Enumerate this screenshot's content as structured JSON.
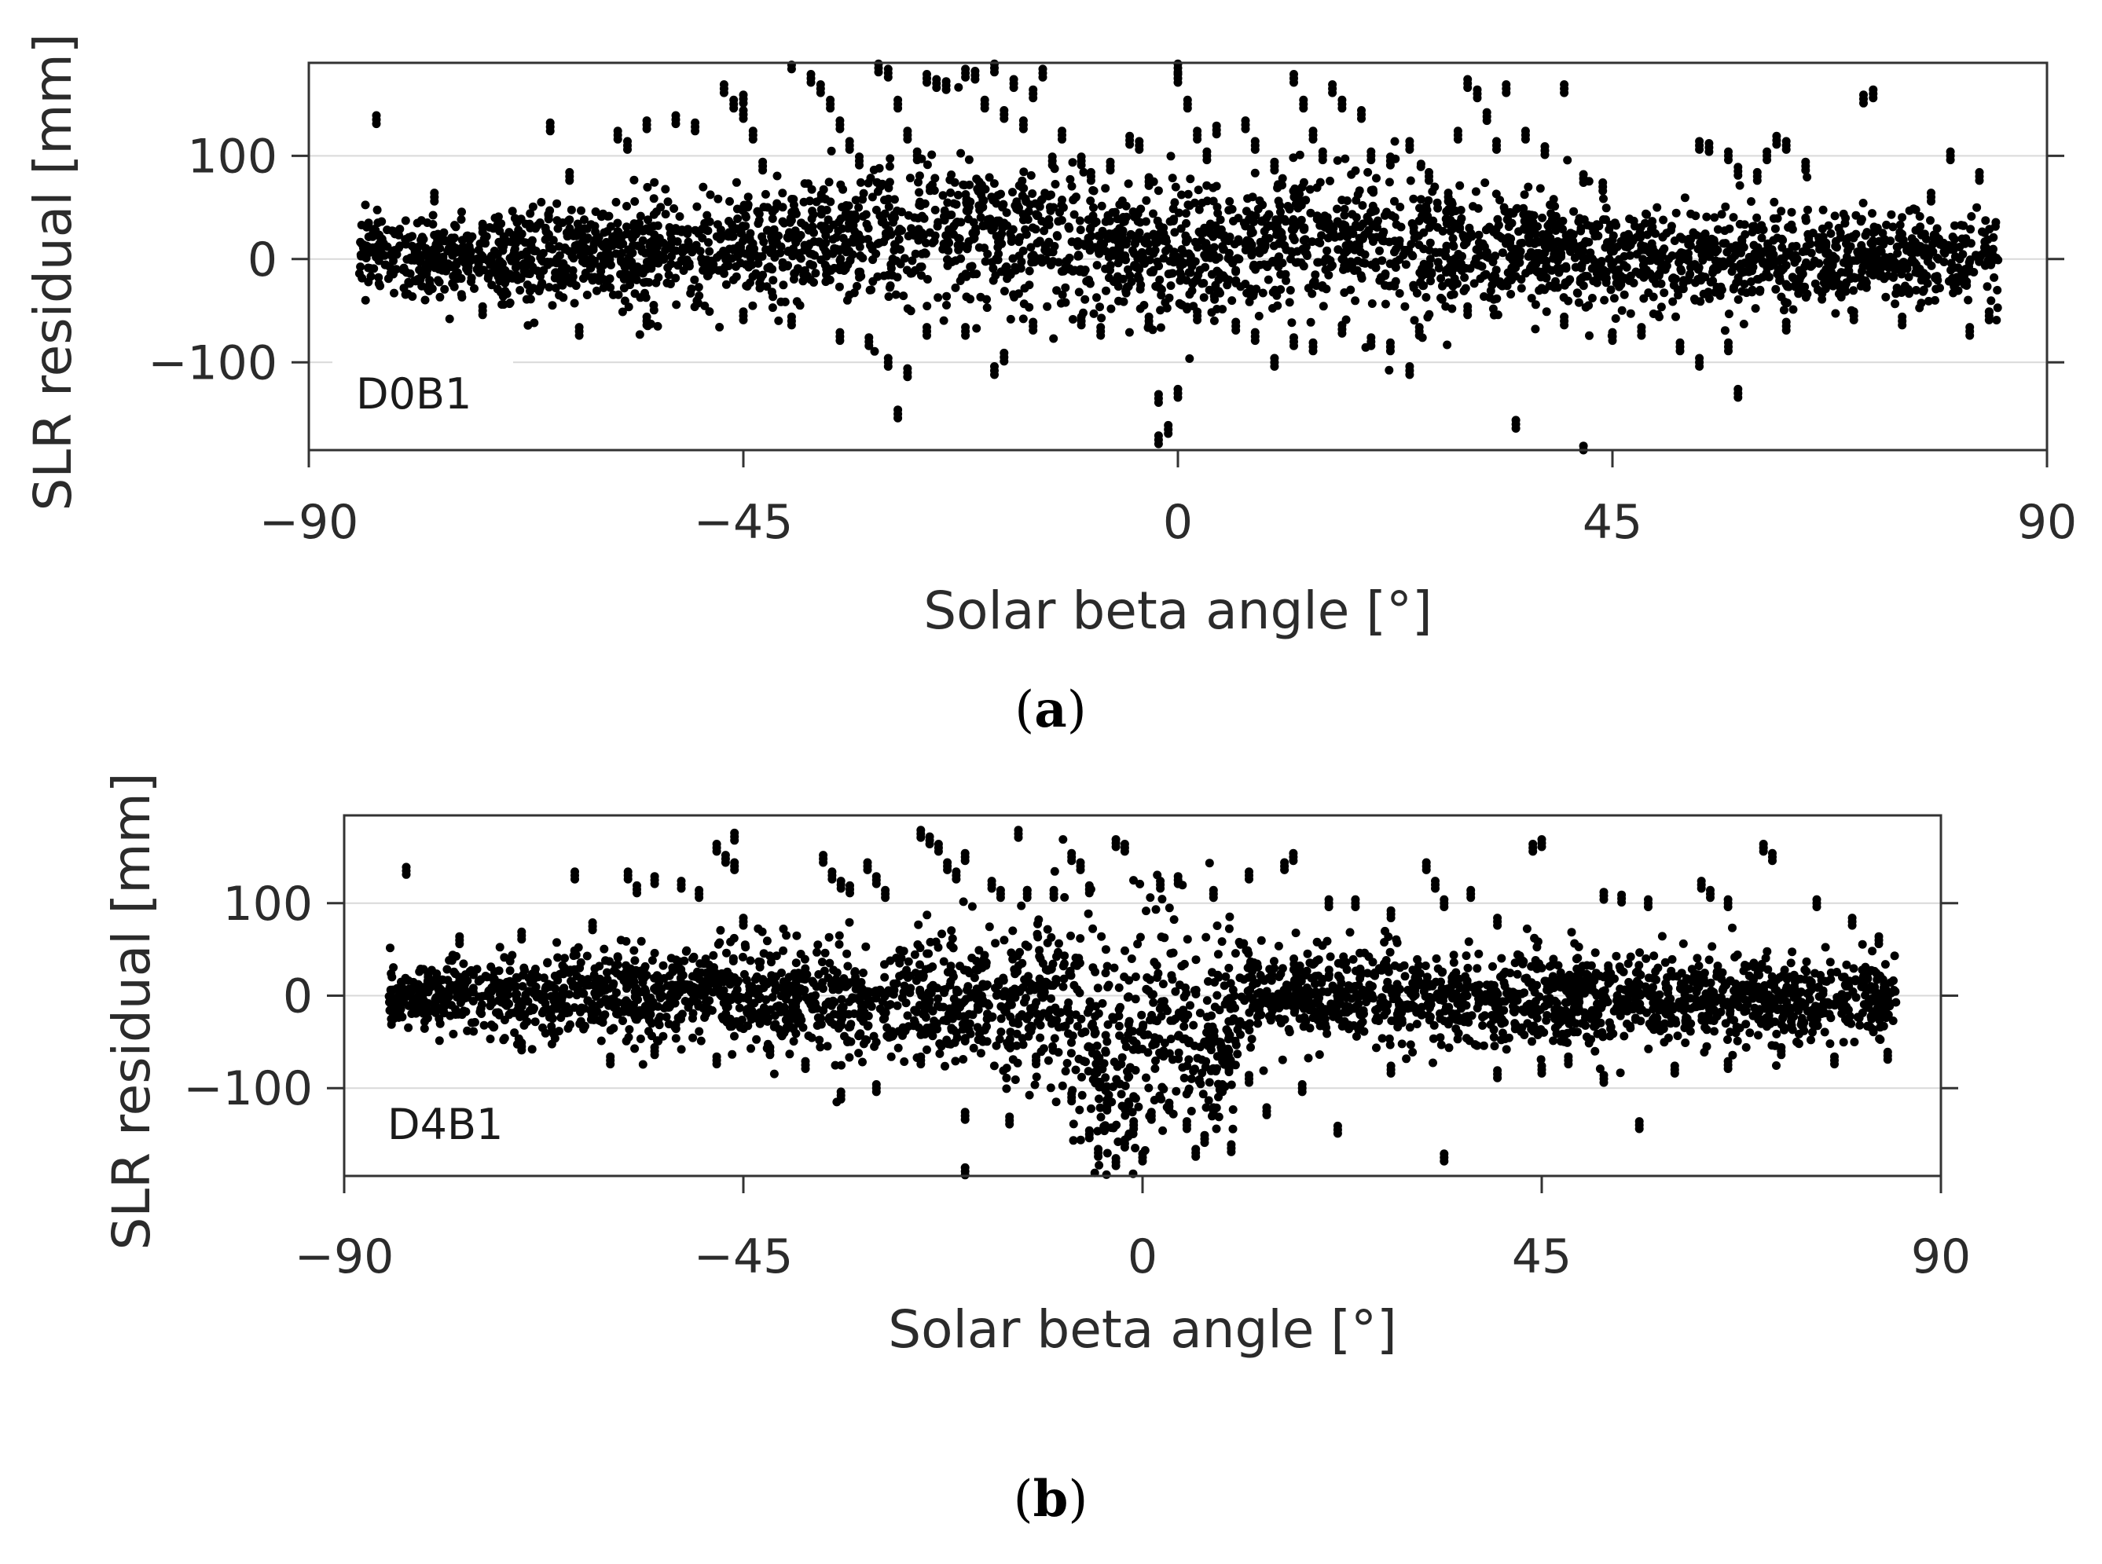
{
  "chart_data": [
    {
      "type": "scatter",
      "panel": "a",
      "caption_letter": "a",
      "annotation": "D0B1",
      "xlabel": "Solar beta angle [°]",
      "ylabel": "SLR residual [mm]",
      "xlim": [
        -90,
        90
      ],
      "ylim": [
        -185,
        190
      ],
      "xticks": [
        -90,
        -45,
        0,
        45,
        90
      ],
      "yticks": [
        -100,
        0,
        100
      ],
      "xtick_labels": [
        "−90",
        "−45",
        "0",
        "45",
        "90"
      ],
      "ytick_labels": [
        "−100",
        "0",
        "100"
      ],
      "grid": "horizontal",
      "marker_color": "#000000",
      "band": [
        [
          -85,
          5,
          20
        ],
        [
          -80,
          0,
          18
        ],
        [
          -75,
          0,
          20
        ],
        [
          -70,
          3,
          22
        ],
        [
          -65,
          5,
          24
        ],
        [
          -60,
          6,
          25
        ],
        [
          -55,
          8,
          26
        ],
        [
          -50,
          10,
          27
        ],
        [
          -45,
          12,
          28
        ],
        [
          -40,
          14,
          30
        ],
        [
          -35,
          18,
          32
        ],
        [
          -30,
          22,
          34
        ],
        [
          -25,
          25,
          36
        ],
        [
          -20,
          26,
          36
        ],
        [
          -15,
          22,
          35
        ],
        [
          -10,
          15,
          34
        ],
        [
          -5,
          10,
          33
        ],
        [
          0,
          8,
          32
        ],
        [
          5,
          10,
          32
        ],
        [
          10,
          14,
          33
        ],
        [
          15,
          18,
          34
        ],
        [
          20,
          20,
          34
        ],
        [
          25,
          18,
          33
        ],
        [
          30,
          14,
          30
        ],
        [
          35,
          8,
          28
        ],
        [
          40,
          3,
          26
        ],
        [
          45,
          0,
          25
        ],
        [
          50,
          0,
          24
        ],
        [
          55,
          0,
          24
        ],
        [
          60,
          0,
          24
        ],
        [
          65,
          0,
          23
        ],
        [
          70,
          0,
          22
        ],
        [
          75,
          0,
          22
        ],
        [
          80,
          0,
          21
        ],
        [
          85,
          0,
          20
        ]
      ],
      "outliers": [
        [
          -83,
          135
        ],
        [
          -77,
          60
        ],
        [
          -72,
          30
        ],
        [
          -65,
          128
        ],
        [
          -63,
          80
        ],
        [
          -58,
          120
        ],
        [
          -57,
          110
        ],
        [
          -55,
          130
        ],
        [
          -52,
          135
        ],
        [
          -50,
          128
        ],
        [
          -47,
          165
        ],
        [
          -46,
          150
        ],
        [
          -45,
          155
        ],
        [
          -45,
          140
        ],
        [
          -44,
          120
        ],
        [
          -43,
          90
        ],
        [
          -40,
          188
        ],
        [
          -38,
          175
        ],
        [
          -37,
          165
        ],
        [
          -36,
          150
        ],
        [
          -35,
          130
        ],
        [
          -34,
          110
        ],
        [
          -33,
          95
        ],
        [
          -31,
          185
        ],
        [
          -30,
          180
        ],
        [
          -29,
          150
        ],
        [
          -28,
          120
        ],
        [
          -27,
          100
        ],
        [
          -26,
          175
        ],
        [
          -25,
          170
        ],
        [
          -24,
          168
        ],
        [
          -22,
          180
        ],
        [
          -21,
          178
        ],
        [
          -20,
          150
        ],
        [
          -19,
          185
        ],
        [
          -18,
          140
        ],
        [
          -17,
          170
        ],
        [
          -16,
          130
        ],
        [
          -15,
          160
        ],
        [
          -14,
          180
        ],
        [
          -13,
          95
        ],
        [
          -12,
          120
        ],
        [
          -10,
          95
        ],
        [
          -9,
          80
        ],
        [
          -7,
          90
        ],
        [
          -5,
          115
        ],
        [
          -4,
          110
        ],
        [
          -3,
          75
        ],
        [
          0,
          185
        ],
        [
          0,
          175
        ],
        [
          1,
          150
        ],
        [
          2,
          120
        ],
        [
          3,
          100
        ],
        [
          4,
          125
        ],
        [
          7,
          130
        ],
        [
          8,
          110
        ],
        [
          10,
          90
        ],
        [
          12,
          175
        ],
        [
          13,
          150
        ],
        [
          14,
          120
        ],
        [
          15,
          100
        ],
        [
          16,
          165
        ],
        [
          17,
          150
        ],
        [
          19,
          140
        ],
        [
          20,
          100
        ],
        [
          22,
          95
        ],
        [
          24,
          110
        ],
        [
          26,
          80
        ],
        [
          28,
          60
        ],
        [
          29,
          120
        ],
        [
          30,
          170
        ],
        [
          31,
          160
        ],
        [
          32,
          138
        ],
        [
          33,
          110
        ],
        [
          34,
          165
        ],
        [
          36,
          120
        ],
        [
          38,
          105
        ],
        [
          40,
          165
        ],
        [
          42,
          78
        ],
        [
          44,
          70
        ],
        [
          54,
          110
        ],
        [
          55,
          108
        ],
        [
          57,
          100
        ],
        [
          58,
          85
        ],
        [
          60,
          80
        ],
        [
          61,
          100
        ],
        [
          62,
          115
        ],
        [
          63,
          110
        ],
        [
          65,
          90
        ],
        [
          71,
          155
        ],
        [
          72,
          160
        ],
        [
          78,
          60
        ],
        [
          80,
          100
        ],
        [
          83,
          80
        ],
        [
          -72,
          -50
        ],
        [
          -62,
          -70
        ],
        [
          -55,
          -60
        ],
        [
          -45,
          -55
        ],
        [
          -40,
          -60
        ],
        [
          -35,
          -75
        ],
        [
          -32,
          -80
        ],
        [
          -30,
          -100
        ],
        [
          -29,
          -150
        ],
        [
          -28,
          -110
        ],
        [
          -26,
          -70
        ],
        [
          -22,
          -70
        ],
        [
          -19,
          -108
        ],
        [
          -18,
          -95
        ],
        [
          -15,
          -65
        ],
        [
          -10,
          -60
        ],
        [
          -8,
          -70
        ],
        [
          -3,
          -60
        ],
        [
          -2,
          -135
        ],
        [
          -2,
          -175
        ],
        [
          -1,
          -165
        ],
        [
          0,
          -130
        ],
        [
          2,
          -55
        ],
        [
          6,
          -65
        ],
        [
          8,
          -75
        ],
        [
          10,
          -100
        ],
        [
          12,
          -80
        ],
        [
          14,
          -85
        ],
        [
          17,
          -68
        ],
        [
          20,
          -80
        ],
        [
          22,
          -85
        ],
        [
          24,
          -108
        ],
        [
          25,
          -70
        ],
        [
          30,
          -50
        ],
        [
          35,
          -160
        ],
        [
          40,
          -60
        ],
        [
          42,
          -185
        ],
        [
          45,
          -75
        ],
        [
          48,
          -70
        ],
        [
          52,
          -85
        ],
        [
          54,
          -100
        ],
        [
          57,
          -85
        ],
        [
          58,
          -130
        ],
        [
          63,
          -65
        ],
        [
          70,
          -55
        ],
        [
          75,
          -60
        ],
        [
          82,
          -70
        ],
        [
          84,
          -55
        ]
      ]
    },
    {
      "type": "scatter",
      "panel": "b",
      "caption_letter": "b",
      "annotation": "D4B1",
      "xlabel": "Solar beta angle [°]",
      "ylabel": "SLR residual [mm]",
      "xlim": [
        -90,
        90
      ],
      "ylim": [
        -195,
        195
      ],
      "xticks": [
        -90,
        -45,
        0,
        45,
        90
      ],
      "yticks": [
        -100,
        0,
        100
      ],
      "xtick_labels": [
        "−90",
        "−45",
        "0",
        "45",
        "90"
      ],
      "ytick_labels": [
        "−100",
        "0",
        "100"
      ],
      "grid": "horizontal",
      "marker_color": "#000000",
      "band": [
        [
          -85,
          0,
          18
        ],
        [
          -80,
          0,
          18
        ],
        [
          -75,
          0,
          20
        ],
        [
          -70,
          0,
          22
        ],
        [
          -65,
          0,
          24
        ],
        [
          -60,
          0,
          25
        ],
        [
          -55,
          0,
          26
        ],
        [
          -50,
          0,
          26
        ],
        [
          -45,
          0,
          27
        ],
        [
          -40,
          0,
          28
        ],
        [
          -35,
          -5,
          30
        ],
        [
          -30,
          -5,
          32
        ],
        [
          -25,
          -5,
          34
        ],
        [
          -20,
          0,
          35
        ],
        [
          -15,
          0,
          40
        ],
        [
          -10,
          0,
          50
        ],
        [
          -6,
          -40,
          60
        ],
        [
          -3,
          -70,
          65
        ],
        [
          0,
          -40,
          70
        ],
        [
          3,
          10,
          70
        ],
        [
          6,
          -60,
          60
        ],
        [
          9,
          -40,
          50
        ],
        [
          12,
          0,
          30
        ],
        [
          15,
          0,
          26
        ],
        [
          20,
          0,
          25
        ],
        [
          25,
          0,
          25
        ],
        [
          30,
          0,
          25
        ],
        [
          35,
          -5,
          25
        ],
        [
          40,
          -5,
          25
        ],
        [
          45,
          -5,
          25
        ],
        [
          50,
          -5,
          25
        ],
        [
          55,
          -5,
          24
        ],
        [
          60,
          -5,
          24
        ],
        [
          65,
          -5,
          23
        ],
        [
          70,
          -5,
          22
        ],
        [
          75,
          -5,
          22
        ],
        [
          80,
          -5,
          21
        ],
        [
          85,
          -5,
          20
        ]
      ],
      "outliers": [
        [
          -83,
          135
        ],
        [
          -77,
          60
        ],
        [
          -70,
          65
        ],
        [
          -64,
          130
        ],
        [
          -62,
          75
        ],
        [
          -58,
          130
        ],
        [
          -57,
          115
        ],
        [
          -55,
          125
        ],
        [
          -52,
          120
        ],
        [
          -50,
          110
        ],
        [
          -48,
          160
        ],
        [
          -47,
          148
        ],
        [
          -46,
          172
        ],
        [
          -46,
          140
        ],
        [
          -45,
          80
        ],
        [
          -36,
          148
        ],
        [
          -35,
          130
        ],
        [
          -34,
          120
        ],
        [
          -33,
          115
        ],
        [
          -31,
          140
        ],
        [
          -30,
          125
        ],
        [
          -29,
          110
        ],
        [
          -25,
          175
        ],
        [
          -24,
          168
        ],
        [
          -23,
          160
        ],
        [
          -22,
          140
        ],
        [
          -21,
          130
        ],
        [
          -20,
          150
        ],
        [
          -17,
          120
        ],
        [
          -16,
          110
        ],
        [
          -14,
          175
        ],
        [
          -13,
          110
        ],
        [
          -10,
          110
        ],
        [
          -8,
          150
        ],
        [
          -7,
          140
        ],
        [
          -6,
          115
        ],
        [
          -3,
          165
        ],
        [
          -2,
          160
        ],
        [
          2,
          120
        ],
        [
          4,
          125
        ],
        [
          8,
          110
        ],
        [
          12,
          130
        ],
        [
          17,
          150
        ],
        [
          16,
          140
        ],
        [
          21,
          100
        ],
        [
          24,
          100
        ],
        [
          28,
          88
        ],
        [
          32,
          140
        ],
        [
          33,
          120
        ],
        [
          34,
          100
        ],
        [
          37,
          110
        ],
        [
          40,
          80
        ],
        [
          45,
          165
        ],
        [
          44,
          160
        ],
        [
          52,
          108
        ],
        [
          54,
          105
        ],
        [
          57,
          100
        ],
        [
          63,
          120
        ],
        [
          64,
          110
        ],
        [
          66,
          100
        ],
        [
          70,
          160
        ],
        [
          71,
          150
        ],
        [
          76,
          100
        ],
        [
          80,
          80
        ],
        [
          83,
          60
        ],
        [
          -70,
          -55
        ],
        [
          -60,
          -70
        ],
        [
          -55,
          -60
        ],
        [
          -48,
          -70
        ],
        [
          -42,
          -60
        ],
        [
          -38,
          -75
        ],
        [
          -34,
          -108
        ],
        [
          -30,
          -100
        ],
        [
          -25,
          -70
        ],
        [
          -20,
          -130
        ],
        [
          -20,
          -190
        ],
        [
          -15,
          -135
        ],
        [
          -12,
          -70
        ],
        [
          -8,
          -110
        ],
        [
          -6,
          -150
        ],
        [
          -5,
          -170
        ],
        [
          -4,
          -120
        ],
        [
          -3,
          -180
        ],
        [
          -2,
          -160
        ],
        [
          -1,
          -140
        ],
        [
          0,
          -175
        ],
        [
          1,
          -130
        ],
        [
          3,
          -120
        ],
        [
          5,
          -140
        ],
        [
          6,
          -170
        ],
        [
          7,
          -155
        ],
        [
          8,
          -125
        ],
        [
          9,
          -100
        ],
        [
          10,
          -165
        ],
        [
          12,
          -90
        ],
        [
          14,
          -125
        ],
        [
          18,
          -100
        ],
        [
          22,
          -145
        ],
        [
          28,
          -80
        ],
        [
          34,
          -175
        ],
        [
          40,
          -85
        ],
        [
          45,
          -80
        ],
        [
          48,
          -70
        ],
        [
          52,
          -90
        ],
        [
          56,
          -140
        ],
        [
          60,
          -80
        ],
        [
          66,
          -75
        ],
        [
          72,
          -60
        ],
        [
          78,
          -70
        ],
        [
          84,
          -65
        ]
      ]
    }
  ]
}
